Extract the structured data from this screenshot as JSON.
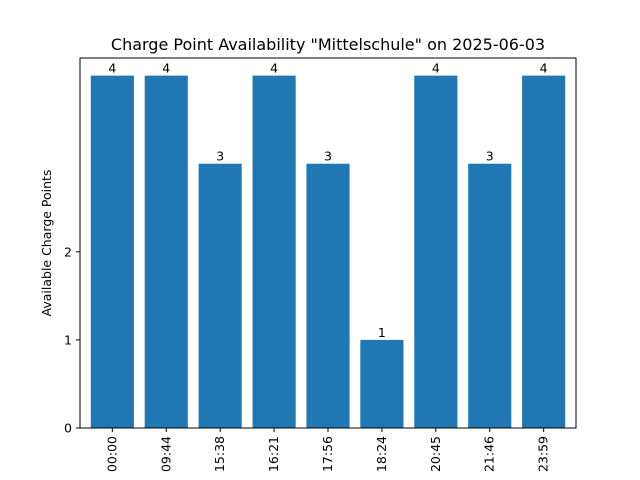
{
  "chart_data": {
    "type": "bar",
    "title": "Charge Point Availability \"Mittelschule\" on 2025-06-03",
    "xlabel": "",
    "ylabel": "Available Charge Points",
    "categories": [
      "00:00",
      "09:44",
      "15:38",
      "16:21",
      "17:56",
      "18:24",
      "20:45",
      "21:46",
      "23:59"
    ],
    "values": [
      4,
      4,
      3,
      4,
      3,
      1,
      4,
      3,
      4
    ],
    "data_labels": [
      "4",
      "4",
      "3",
      "4",
      "3",
      "1",
      "4",
      "3",
      "4"
    ],
    "yticks": [
      0,
      1,
      2
    ],
    "ylim": [
      0,
      4.2
    ],
    "grid": false,
    "bar_color": "#1f77b4"
  }
}
